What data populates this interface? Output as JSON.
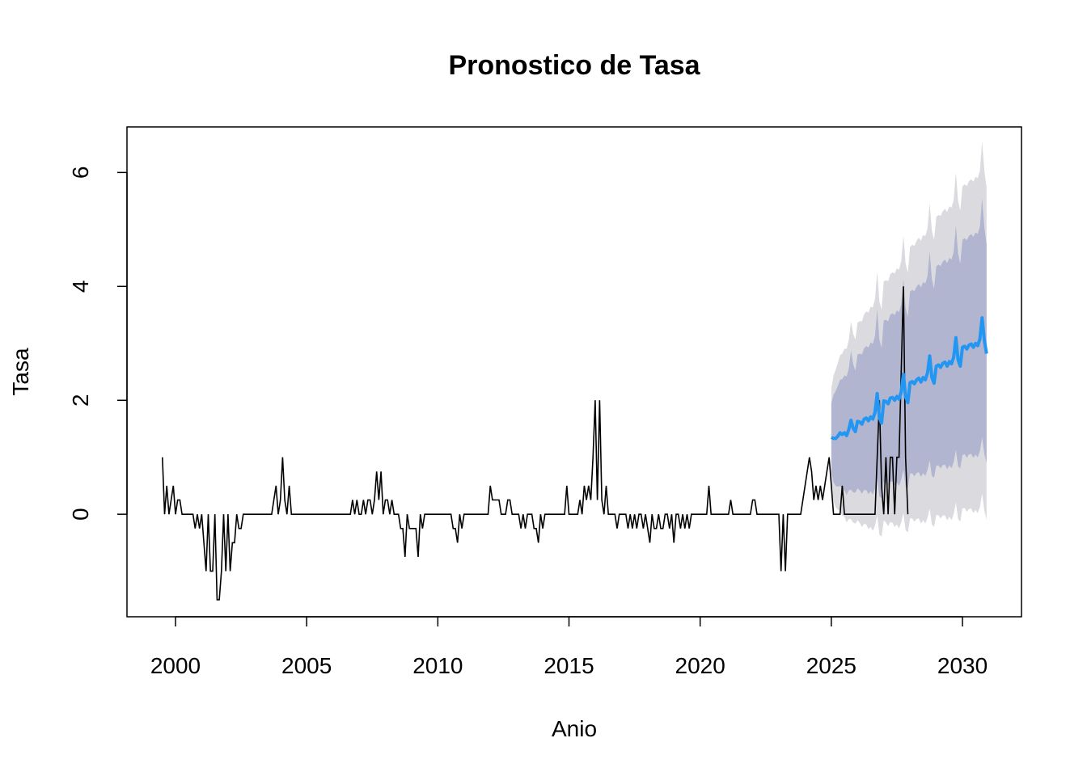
{
  "chart_data": {
    "type": "line",
    "title": "Pronostico de Tasa",
    "xlabel": "Anio",
    "ylabel": "Tasa",
    "xlim": [
      1998.15,
      2032.25
    ],
    "ylim": [
      -1.8,
      6.8
    ],
    "x_ticks": [
      2000,
      2005,
      2010,
      2015,
      2020,
      2025,
      2030
    ],
    "y_ticks": [
      0,
      2,
      4,
      6
    ],
    "grid": false,
    "legend": "none",
    "colors": {
      "history": "#000000",
      "forecast": "#2196f3",
      "band80": "#b1b5cf",
      "band95": "#dbdbdf"
    },
    "history": {
      "start": 1999.5,
      "step": 0.0833333,
      "values": [
        1,
        0,
        0.5,
        0,
        0.25,
        0.5,
        0,
        0.25,
        0.25,
        0,
        0,
        0,
        0,
        0,
        0,
        -0.25,
        0,
        -0.25,
        0,
        -0.5,
        -1,
        0,
        -1,
        -1,
        0,
        -1.5,
        -1.5,
        -1,
        0,
        -1,
        0,
        -1,
        -0.5,
        -0.5,
        0,
        -0.25,
        -0.25,
        0,
        0,
        0,
        0,
        0,
        0,
        0,
        0,
        0,
        0,
        0,
        0,
        0,
        0,
        0.25,
        0.5,
        0,
        0.25,
        1,
        0.25,
        0,
        0.5,
        0,
        0,
        0,
        0,
        0,
        0,
        0,
        0,
        0,
        0,
        0,
        0,
        0,
        0,
        0,
        0,
        0,
        0,
        0,
        0,
        0,
        0,
        0,
        0,
        0,
        0,
        0,
        0,
        0.25,
        0,
        0.25,
        0,
        0,
        0.25,
        0,
        0.25,
        0.25,
        0,
        0.25,
        0.75,
        0.25,
        0.75,
        0,
        0.25,
        0.25,
        0,
        0.25,
        0,
        0,
        0,
        -0.25,
        -0.25,
        -0.75,
        0,
        -0.25,
        -0.25,
        -0.25,
        -0.25,
        -0.75,
        0,
        -0.25,
        0,
        0,
        0,
        0,
        0,
        0,
        0,
        0,
        0,
        0,
        0,
        0,
        0,
        -0.25,
        -0.25,
        -0.5,
        0,
        -0.25,
        0,
        0,
        0,
        0,
        0,
        0,
        0,
        0,
        0,
        0,
        0,
        0,
        0.5,
        0.25,
        0.25,
        0.25,
        0.25,
        0,
        0,
        0,
        0.25,
        0.25,
        0,
        0,
        0,
        0,
        -0.25,
        0,
        -0.25,
        0,
        0,
        0,
        -0.25,
        -0.25,
        -0.5,
        0,
        -0.25,
        0,
        0,
        0,
        0,
        0,
        0,
        0,
        0,
        0,
        0,
        0.5,
        0,
        0,
        0,
        0,
        0,
        0.25,
        0,
        0.5,
        0.25,
        0.5,
        0.25,
        1,
        2,
        0.25,
        2,
        0.25,
        0,
        0.5,
        0,
        0,
        0,
        0,
        -0.25,
        0,
        0,
        0,
        0,
        -0.25,
        0,
        -0.25,
        0,
        -0.25,
        0,
        0,
        -0.25,
        0,
        -0.25,
        -0.5,
        0,
        -0.25,
        -0.25,
        0,
        -0.25,
        -0.25,
        0,
        0,
        -0.25,
        0,
        -0.5,
        0,
        0,
        -0.25,
        0,
        -0.25,
        0,
        -0.25,
        0,
        0,
        0,
        0,
        0,
        0,
        0,
        0,
        0.5,
        0,
        0,
        0,
        0,
        0,
        0,
        0,
        0,
        0,
        0.25,
        0,
        0,
        0,
        0,
        0,
        0,
        0,
        0,
        0,
        0.25,
        0.25,
        0,
        0,
        0,
        0,
        0,
        0,
        0,
        0,
        0,
        0,
        0,
        -1,
        0,
        -1,
        0,
        0,
        0,
        0,
        0,
        0,
        0,
        0.25,
        0.5,
        0.75,
        1,
        0.75,
        0.25,
        0.5,
        0.25,
        0.5,
        0.25,
        0.5,
        0.75,
        1,
        0.5,
        0,
        0,
        0,
        0,
        0.5,
        0,
        0,
        0,
        0,
        0,
        0,
        0,
        0,
        0,
        0,
        0,
        0,
        0,
        0,
        0,
        1,
        2,
        0.5,
        0,
        1,
        0,
        1,
        1,
        0,
        1,
        1,
        2.5,
        4,
        1,
        0
      ]
    },
    "forecast": {
      "start": 2025.0,
      "step": 0.0833333,
      "values": [
        1.35,
        1.33,
        1.33,
        1.37,
        1.43,
        1.4,
        1.43,
        1.38,
        1.49,
        1.65,
        1.51,
        1.45,
        1.63,
        1.62,
        1.58,
        1.67,
        1.69,
        1.64,
        1.71,
        1.67,
        1.79,
        2.12,
        1.69,
        1.6,
        1.99,
        1.98,
        1.94,
        2.04,
        2.05,
        2.0,
        2.07,
        2.02,
        2.15,
        2.46,
        2.06,
        1.96,
        2.31,
        2.33,
        2.29,
        2.36,
        2.39,
        2.32,
        2.4,
        2.36,
        2.48,
        2.78,
        2.4,
        2.3,
        2.6,
        2.62,
        2.58,
        2.65,
        2.67,
        2.6,
        2.68,
        2.64,
        2.76,
        3.1,
        2.71,
        2.6,
        2.93,
        2.95,
        2.9,
        2.97,
        2.99,
        2.93,
        3.0,
        2.96,
        3.08,
        3.45,
        3.05,
        2.82
      ]
    },
    "band80": {
      "half_width_start": 0.6,
      "half_width_end": 2.0
    },
    "band95": {
      "half_width_start": 0.85,
      "half_width_end": 3.0
    }
  }
}
